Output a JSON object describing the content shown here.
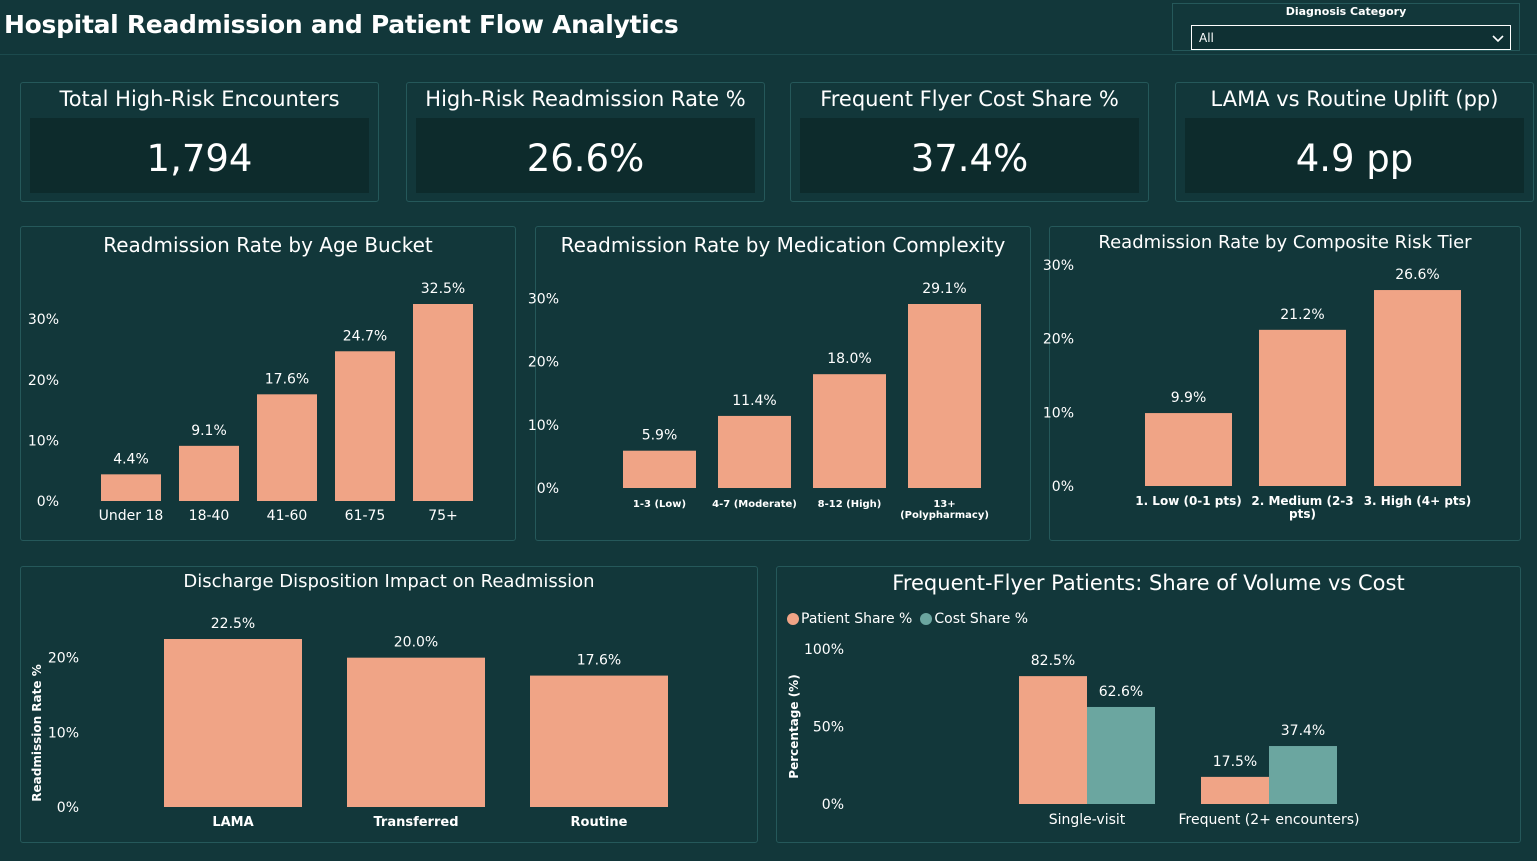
{
  "header": {
    "title": "Hospital Readmission and Patient Flow Analytics"
  },
  "slicer": {
    "label": "Diagnosis Category",
    "value": "All"
  },
  "kpis": [
    {
      "title": "Total High-Risk Encounters",
      "value": "1,794"
    },
    {
      "title": "High-Risk Readmission Rate %",
      "value": "26.6%"
    },
    {
      "title": "Frequent Flyer Cost Share %",
      "value": "37.4%"
    },
    {
      "title": "LAMA vs Routine Uplift (pp)",
      "value": "4.9 pp"
    }
  ],
  "colors": {
    "bar": "#f0a486",
    "bar2": "#6ba6a0",
    "background": "#12373a",
    "kpi_box": "#0d2b2c"
  },
  "chart_data": [
    {
      "type": "bar",
      "title": "Readmission Rate by Age Bucket",
      "categories": [
        "Under 18",
        "18-40",
        "41-60",
        "61-75",
        "75+"
      ],
      "values": [
        4.4,
        9.1,
        17.6,
        24.7,
        32.5
      ],
      "data_labels": [
        "4.4%",
        "9.1%",
        "17.6%",
        "24.7%",
        "32.5%"
      ],
      "yticks": [
        "0%",
        "10%",
        "20%",
        "30%"
      ],
      "ylim": [
        0,
        32.5
      ]
    },
    {
      "type": "bar",
      "title": "Readmission Rate by Medication Complexity",
      "categories": [
        "1-3 (Low)",
        "4-7 (Moderate)",
        "8-12 (High)",
        "13+ (Polypharmacy)"
      ],
      "values": [
        5.9,
        11.4,
        18.0,
        29.1
      ],
      "data_labels": [
        "5.9%",
        "11.4%",
        "18.0%",
        "29.1%"
      ],
      "yticks": [
        "0%",
        "10%",
        "20%",
        "30%"
      ],
      "ylim": [
        0,
        29.1
      ]
    },
    {
      "type": "bar",
      "title": "Readmission Rate by Composite Risk Tier",
      "categories": [
        "1. Low (0-1 pts)",
        "2. Medium (2-3 pts)",
        "3. High (4+ pts)"
      ],
      "values": [
        9.9,
        21.2,
        26.6
      ],
      "data_labels": [
        "9.9%",
        "21.2%",
        "26.6%"
      ],
      "yticks": [
        "0%",
        "10%",
        "20%",
        "30%"
      ],
      "ylim": [
        0,
        30
      ]
    },
    {
      "type": "bar",
      "title": "Discharge Disposition Impact on Readmission",
      "categories": [
        "LAMA",
        "Transferred",
        "Routine"
      ],
      "values": [
        22.5,
        20.0,
        17.6
      ],
      "data_labels": [
        "22.5%",
        "20.0%",
        "17.6%"
      ],
      "ylabel": "Readmission Rate %",
      "yticks": [
        "0%",
        "10%",
        "20%"
      ],
      "ylim": [
        0,
        22.5
      ]
    },
    {
      "type": "bar",
      "title": "Frequent-Flyer Patients: Share of Volume vs Cost",
      "categories": [
        "Single-visit",
        "Frequent (2+ encounters)"
      ],
      "series": [
        {
          "name": "Patient Share %",
          "values": [
            82.5,
            17.5
          ],
          "labels": [
            "82.5%",
            "17.5%"
          ]
        },
        {
          "name": "Cost Share %",
          "values": [
            62.6,
            37.4
          ],
          "labels": [
            "62.6%",
            "37.4%"
          ]
        }
      ],
      "ylabel": "Percentage (%)",
      "yticks": [
        "0%",
        "50%",
        "100%"
      ],
      "ylim": [
        0,
        100
      ],
      "legend": "top-left"
    }
  ]
}
